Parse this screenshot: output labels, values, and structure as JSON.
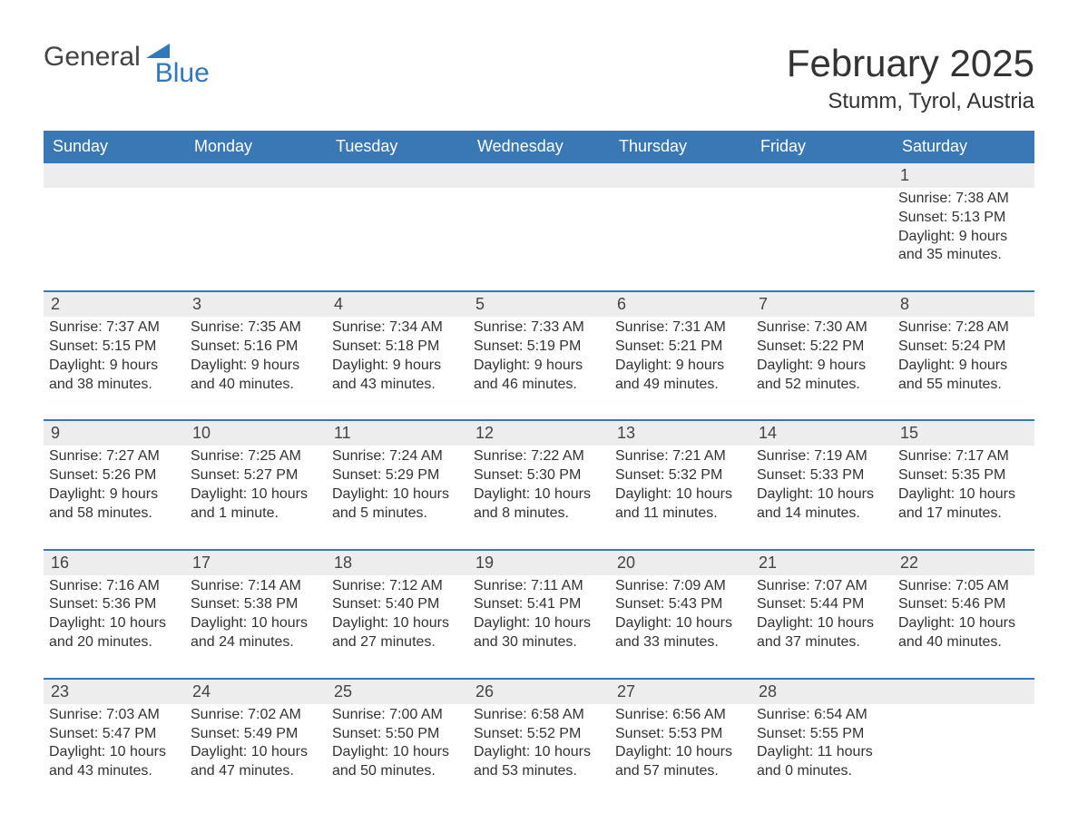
{
  "logo": {
    "line1": "General",
    "line2": "Blue"
  },
  "title": "February 2025",
  "location": "Stumm, Tyrol, Austria",
  "colors": {
    "header_bg": "#3a78b5",
    "header_text": "#ffffff",
    "daynum_bg": "#ededed",
    "rule": "#3a78b5",
    "body_text": "#333333",
    "logo_blue": "#2f78bd",
    "logo_gray": "#444444",
    "page_bg": "#ffffff"
  },
  "layout": {
    "columns": 7,
    "rows": 5,
    "first_day_column_index": 6,
    "title_fontsize": 42,
    "location_fontsize": 24,
    "dow_fontsize": 18,
    "daynum_fontsize": 18,
    "body_fontsize": 16
  },
  "days_of_week": [
    "Sunday",
    "Monday",
    "Tuesday",
    "Wednesday",
    "Thursday",
    "Friday",
    "Saturday"
  ],
  "labels": {
    "sunrise": "Sunrise",
    "sunset": "Sunset",
    "daylight": "Daylight"
  },
  "days": [
    {
      "n": 1,
      "sunrise": "7:38 AM",
      "sunset": "5:13 PM",
      "daylight": "9 hours and 35 minutes."
    },
    {
      "n": 2,
      "sunrise": "7:37 AM",
      "sunset": "5:15 PM",
      "daylight": "9 hours and 38 minutes."
    },
    {
      "n": 3,
      "sunrise": "7:35 AM",
      "sunset": "5:16 PM",
      "daylight": "9 hours and 40 minutes."
    },
    {
      "n": 4,
      "sunrise": "7:34 AM",
      "sunset": "5:18 PM",
      "daylight": "9 hours and 43 minutes."
    },
    {
      "n": 5,
      "sunrise": "7:33 AM",
      "sunset": "5:19 PM",
      "daylight": "9 hours and 46 minutes."
    },
    {
      "n": 6,
      "sunrise": "7:31 AM",
      "sunset": "5:21 PM",
      "daylight": "9 hours and 49 minutes."
    },
    {
      "n": 7,
      "sunrise": "7:30 AM",
      "sunset": "5:22 PM",
      "daylight": "9 hours and 52 minutes."
    },
    {
      "n": 8,
      "sunrise": "7:28 AM",
      "sunset": "5:24 PM",
      "daylight": "9 hours and 55 minutes."
    },
    {
      "n": 9,
      "sunrise": "7:27 AM",
      "sunset": "5:26 PM",
      "daylight": "9 hours and 58 minutes."
    },
    {
      "n": 10,
      "sunrise": "7:25 AM",
      "sunset": "5:27 PM",
      "daylight": "10 hours and 1 minute."
    },
    {
      "n": 11,
      "sunrise": "7:24 AM",
      "sunset": "5:29 PM",
      "daylight": "10 hours and 5 minutes."
    },
    {
      "n": 12,
      "sunrise": "7:22 AM",
      "sunset": "5:30 PM",
      "daylight": "10 hours and 8 minutes."
    },
    {
      "n": 13,
      "sunrise": "7:21 AM",
      "sunset": "5:32 PM",
      "daylight": "10 hours and 11 minutes."
    },
    {
      "n": 14,
      "sunrise": "7:19 AM",
      "sunset": "5:33 PM",
      "daylight": "10 hours and 14 minutes."
    },
    {
      "n": 15,
      "sunrise": "7:17 AM",
      "sunset": "5:35 PM",
      "daylight": "10 hours and 17 minutes."
    },
    {
      "n": 16,
      "sunrise": "7:16 AM",
      "sunset": "5:36 PM",
      "daylight": "10 hours and 20 minutes."
    },
    {
      "n": 17,
      "sunrise": "7:14 AM",
      "sunset": "5:38 PM",
      "daylight": "10 hours and 24 minutes."
    },
    {
      "n": 18,
      "sunrise": "7:12 AM",
      "sunset": "5:40 PM",
      "daylight": "10 hours and 27 minutes."
    },
    {
      "n": 19,
      "sunrise": "7:11 AM",
      "sunset": "5:41 PM",
      "daylight": "10 hours and 30 minutes."
    },
    {
      "n": 20,
      "sunrise": "7:09 AM",
      "sunset": "5:43 PM",
      "daylight": "10 hours and 33 minutes."
    },
    {
      "n": 21,
      "sunrise": "7:07 AM",
      "sunset": "5:44 PM",
      "daylight": "10 hours and 37 minutes."
    },
    {
      "n": 22,
      "sunrise": "7:05 AM",
      "sunset": "5:46 PM",
      "daylight": "10 hours and 40 minutes."
    },
    {
      "n": 23,
      "sunrise": "7:03 AM",
      "sunset": "5:47 PM",
      "daylight": "10 hours and 43 minutes."
    },
    {
      "n": 24,
      "sunrise": "7:02 AM",
      "sunset": "5:49 PM",
      "daylight": "10 hours and 47 minutes."
    },
    {
      "n": 25,
      "sunrise": "7:00 AM",
      "sunset": "5:50 PM",
      "daylight": "10 hours and 50 minutes."
    },
    {
      "n": 26,
      "sunrise": "6:58 AM",
      "sunset": "5:52 PM",
      "daylight": "10 hours and 53 minutes."
    },
    {
      "n": 27,
      "sunrise": "6:56 AM",
      "sunset": "5:53 PM",
      "daylight": "10 hours and 57 minutes."
    },
    {
      "n": 28,
      "sunrise": "6:54 AM",
      "sunset": "5:55 PM",
      "daylight": "11 hours and 0 minutes."
    }
  ]
}
